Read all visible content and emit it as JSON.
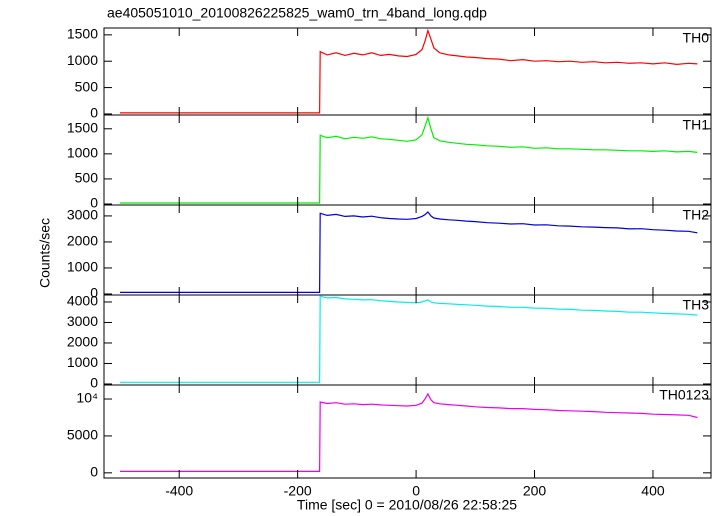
{
  "title": "ae405051010_20100826225825_wam0_trn_4band_long.qdp",
  "ylabel": "Counts/sec",
  "xlabel": "Time [sec] 0 = 2010/08/26 22:58:25",
  "chart_data": [
    {
      "type": "line",
      "name": "TH0",
      "color": "#ff0000",
      "xlim": [
        -527,
        498
      ],
      "xticks": [
        -400,
        -200,
        0,
        200,
        400
      ],
      "ylim": [
        -20,
        1630
      ],
      "yticks": [
        0,
        500,
        1000,
        1500
      ],
      "x": [
        -500,
        -163,
        -162,
        -150,
        -135,
        -120,
        -105,
        -90,
        -75,
        -60,
        -45,
        -30,
        -15,
        0,
        10,
        15,
        20,
        25,
        30,
        40,
        55,
        70,
        85,
        100,
        120,
        140,
        160,
        180,
        200,
        220,
        240,
        260,
        280,
        300,
        320,
        340,
        360,
        380,
        400,
        420,
        440,
        460,
        475
      ],
      "values": [
        20,
        20,
        1180,
        1120,
        1160,
        1110,
        1150,
        1120,
        1160,
        1110,
        1130,
        1100,
        1090,
        1130,
        1220,
        1380,
        1580,
        1420,
        1250,
        1160,
        1120,
        1100,
        1080,
        1070,
        1050,
        1040,
        1010,
        1030,
        1000,
        1010,
        990,
        1000,
        980,
        990,
        970,
        980,
        960,
        970,
        950,
        970,
        940,
        960,
        950
      ]
    },
    {
      "type": "line",
      "name": "TH1",
      "color": "#00ee00",
      "xlim": [
        -527,
        498
      ],
      "xticks": [
        -400,
        -200,
        0,
        200,
        400
      ],
      "ylim": [
        -20,
        1775
      ],
      "yticks": [
        0,
        500,
        1000,
        1500
      ],
      "x": [
        -500,
        -163,
        -162,
        -150,
        -135,
        -120,
        -105,
        -90,
        -75,
        -60,
        -45,
        -30,
        -15,
        0,
        10,
        15,
        20,
        25,
        30,
        40,
        55,
        70,
        85,
        100,
        120,
        140,
        160,
        180,
        200,
        220,
        240,
        260,
        280,
        300,
        320,
        340,
        360,
        380,
        400,
        420,
        440,
        460,
        475
      ],
      "values": [
        20,
        20,
        1370,
        1320,
        1350,
        1300,
        1330,
        1310,
        1340,
        1300,
        1290,
        1270,
        1250,
        1280,
        1380,
        1550,
        1720,
        1500,
        1320,
        1260,
        1230,
        1210,
        1190,
        1180,
        1160,
        1150,
        1130,
        1140,
        1110,
        1120,
        1100,
        1100,
        1090,
        1080,
        1080,
        1070,
        1060,
        1060,
        1050,
        1060,
        1040,
        1050,
        1030
      ]
    },
    {
      "type": "line",
      "name": "TH2",
      "color": "#0000dd",
      "xlim": [
        -527,
        498
      ],
      "xticks": [
        -400,
        -200,
        0,
        200,
        400
      ],
      "ylim": [
        -40,
        3420
      ],
      "yticks": [
        0,
        1000,
        2000,
        3000
      ],
      "x": [
        -500,
        -163,
        -162,
        -150,
        -135,
        -120,
        -105,
        -90,
        -75,
        -60,
        -45,
        -30,
        -15,
        0,
        10,
        15,
        20,
        25,
        30,
        40,
        55,
        70,
        85,
        100,
        120,
        140,
        160,
        180,
        200,
        220,
        240,
        260,
        280,
        300,
        320,
        340,
        360,
        380,
        400,
        420,
        440,
        460,
        475
      ],
      "values": [
        60,
        60,
        3100,
        3020,
        3060,
        2980,
        3000,
        2960,
        2990,
        2930,
        2900,
        2880,
        2870,
        2900,
        2980,
        3050,
        3150,
        3000,
        2920,
        2880,
        2850,
        2830,
        2800,
        2780,
        2740,
        2720,
        2690,
        2700,
        2650,
        2660,
        2620,
        2610,
        2580,
        2570,
        2550,
        2540,
        2500,
        2510,
        2470,
        2450,
        2420,
        2410,
        2350
      ]
    },
    {
      "type": "line",
      "name": "TH3",
      "color": "#00eeee",
      "xlim": [
        -527,
        498
      ],
      "xticks": [
        -400,
        -200,
        0,
        200,
        400
      ],
      "ylim": [
        -50,
        4340
      ],
      "yticks": [
        0,
        1000,
        2000,
        3000,
        4000
      ],
      "x": [
        -500,
        -163,
        -162,
        -150,
        -135,
        -120,
        -105,
        -90,
        -75,
        -60,
        -45,
        -30,
        -15,
        0,
        10,
        15,
        20,
        25,
        30,
        40,
        55,
        70,
        85,
        100,
        120,
        140,
        160,
        180,
        200,
        220,
        240,
        260,
        280,
        300,
        320,
        340,
        360,
        380,
        400,
        420,
        440,
        460,
        475
      ],
      "values": [
        80,
        80,
        4280,
        4200,
        4220,
        4150,
        4130,
        4100,
        4110,
        4060,
        4030,
        4000,
        3980,
        3960,
        4000,
        4050,
        4100,
        4000,
        3960,
        3930,
        3910,
        3880,
        3860,
        3840,
        3800,
        3780,
        3740,
        3740,
        3700,
        3690,
        3650,
        3640,
        3600,
        3590,
        3560,
        3540,
        3500,
        3500,
        3470,
        3440,
        3420,
        3400,
        3360
      ]
    },
    {
      "type": "line",
      "name": "TH0123",
      "color": "#ee00ee",
      "xlim": [
        -527,
        498
      ],
      "xticks": [
        -400,
        -200,
        0,
        200,
        400
      ],
      "ylim": [
        -700,
        11900
      ],
      "yticks": [
        0,
        5000,
        {
          "value": 10000,
          "label": "10⁴"
        }
      ],
      "x": [
        -500,
        -163,
        -162,
        -150,
        -135,
        -120,
        -105,
        -90,
        -75,
        -60,
        -45,
        -30,
        -15,
        0,
        10,
        15,
        20,
        25,
        30,
        40,
        55,
        70,
        85,
        100,
        120,
        140,
        160,
        180,
        200,
        220,
        240,
        260,
        280,
        300,
        320,
        340,
        360,
        380,
        400,
        420,
        440,
        460,
        475
      ],
      "values": [
        200,
        200,
        9600,
        9400,
        9500,
        9300,
        9350,
        9250,
        9300,
        9200,
        9150,
        9100,
        9050,
        9150,
        9450,
        10000,
        10700,
        9900,
        9500,
        9350,
        9250,
        9150,
        9050,
        8950,
        8850,
        8800,
        8700,
        8700,
        8600,
        8550,
        8450,
        8400,
        8350,
        8300,
        8200,
        8150,
        8100,
        8050,
        7950,
        7900,
        7850,
        7800,
        7500
      ]
    }
  ]
}
